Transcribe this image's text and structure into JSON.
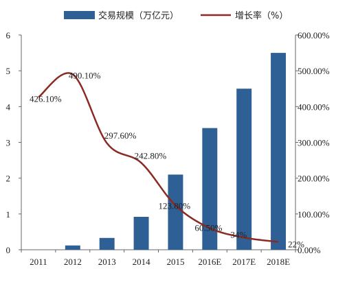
{
  "chart_data": {
    "type": "bar+line",
    "categories": [
      "2011",
      "2012",
      "2013",
      "2014",
      "2015",
      "2016E",
      "2017E",
      "2018E"
    ],
    "series": [
      {
        "name": "交易规模（万亿元）",
        "type": "bar",
        "axis": "left",
        "color": "#2e5f95",
        "values": [
          null,
          0.12,
          0.33,
          0.92,
          2.1,
          3.4,
          4.5,
          5.5
        ]
      },
      {
        "name": "增长率（%）",
        "type": "line",
        "axis": "right",
        "color": "#8b2a22",
        "values": [
          426.1,
          490.1,
          297.6,
          242.8,
          123.8,
          60.5,
          34,
          22
        ],
        "labels": [
          "426.10%",
          "490.10%",
          "297.60%",
          "242.80%",
          "123.80%",
          "60.50%",
          "34%",
          "22%"
        ]
      }
    ],
    "y_left": {
      "ylim": [
        0,
        6
      ],
      "ticks": [
        "0",
        "1",
        "2",
        "3",
        "4",
        "5",
        "6"
      ]
    },
    "y_right": {
      "ylim": [
        0,
        600
      ],
      "ticks": [
        "0.00%",
        "100.00%",
        "200.00%",
        "300.00%",
        "400.00%",
        "500.00%",
        "600.00%"
      ]
    },
    "legend_position": "top-center",
    "grid": false
  }
}
